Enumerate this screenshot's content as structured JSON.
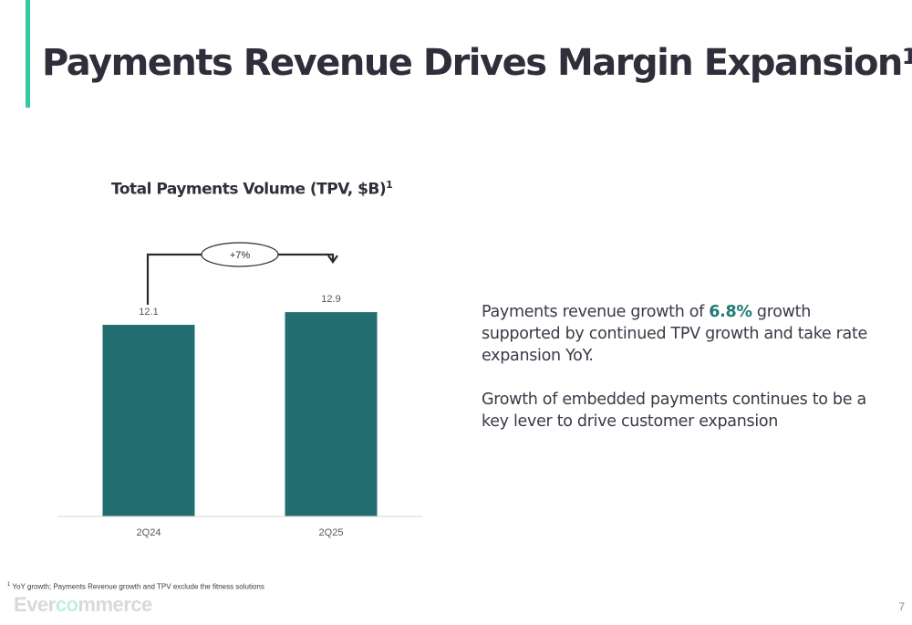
{
  "slide": {
    "title": "Payments Revenue Drives Margin Expansion",
    "title_footnote_mark": "1",
    "page_number": "7"
  },
  "chart_data": {
    "type": "bar",
    "title": "Total Payments Volume (TPV, $B)",
    "title_footnote_mark": "1",
    "categories": [
      "2Q24",
      "2Q25"
    ],
    "values": [
      12.1,
      12.9
    ],
    "data_labels": [
      "12.1",
      "12.9"
    ],
    "growth_annotation": "+7%",
    "bar_color": "#226e70",
    "ylim": [
      0,
      13.5
    ],
    "xlabel": "",
    "ylabel": "",
    "grid": false,
    "legend": "none"
  },
  "body": {
    "paragraph1_prefix": "Payments revenue growth of ",
    "paragraph1_highlight": "6.8%",
    "paragraph1_suffix": " growth supported by continued TPV growth and take rate expansion YoY.",
    "paragraph2": "Growth of embedded payments continues to be a key lever to drive customer expansion"
  },
  "footnote": {
    "mark": "1",
    "text": " YoY growth; Payments Revenue growth and TPV exclude the fitness solutions"
  },
  "logo": {
    "text_prefix": "Ever",
    "text_accent": "co",
    "text_suffix": "mmerce"
  },
  "colors": {
    "accent": "#34c9a3",
    "highlight": "#1f7a74",
    "bar": "#226e70"
  }
}
